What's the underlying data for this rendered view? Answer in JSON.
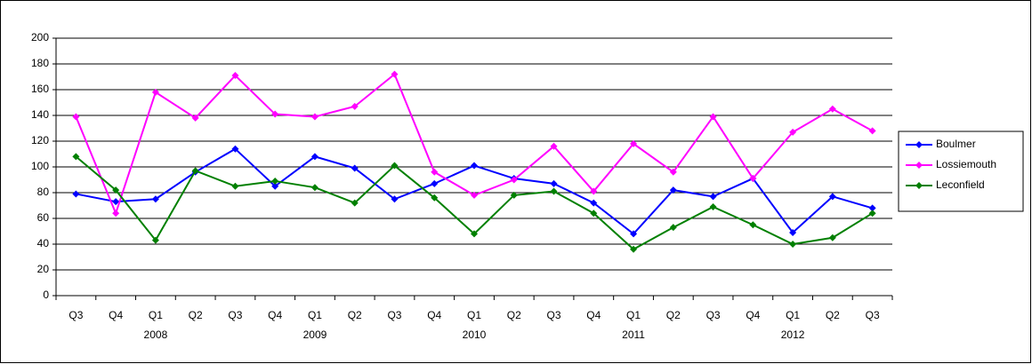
{
  "chart_data": {
    "type": "line",
    "categories": [
      "Q3",
      "Q4",
      "Q1",
      "Q2",
      "Q3",
      "Q4",
      "Q1",
      "Q2",
      "Q3",
      "Q4",
      "Q1",
      "Q2",
      "Q3",
      "Q4",
      "Q1",
      "Q2",
      "Q3",
      "Q4",
      "Q1",
      "Q2",
      "Q3"
    ],
    "category_groups": [
      null,
      null,
      "2008",
      null,
      null,
      null,
      "2009",
      null,
      null,
      null,
      "2010",
      null,
      null,
      null,
      "2011",
      null,
      null,
      null,
      "2012",
      null,
      null
    ],
    "series": [
      {
        "name": "Boulmer",
        "color": "#0000ff",
        "values": [
          79,
          73,
          75,
          96,
          114,
          85,
          108,
          99,
          75,
          87,
          101,
          91,
          87,
          72,
          48,
          82,
          77,
          91,
          49,
          77,
          68
        ]
      },
      {
        "name": "Lossiemouth",
        "color": "#ff00ff",
        "values": [
          139,
          64,
          158,
          138,
          171,
          141,
          139,
          147,
          172,
          96,
          78,
          90,
          116,
          81,
          118,
          96,
          139,
          91,
          127,
          145,
          128
        ]
      },
      {
        "name": "Leconfield",
        "color": "#008000",
        "values": [
          108,
          82,
          43,
          97,
          85,
          89,
          84,
          72,
          101,
          76,
          48,
          78,
          81,
          64,
          36,
          53,
          69,
          55,
          40,
          45,
          64
        ]
      }
    ],
    "ylim": [
      0,
      200
    ],
    "yticks": [
      0,
      20,
      40,
      60,
      80,
      100,
      120,
      140,
      160,
      180,
      200
    ],
    "grid": true,
    "legend": "right"
  }
}
